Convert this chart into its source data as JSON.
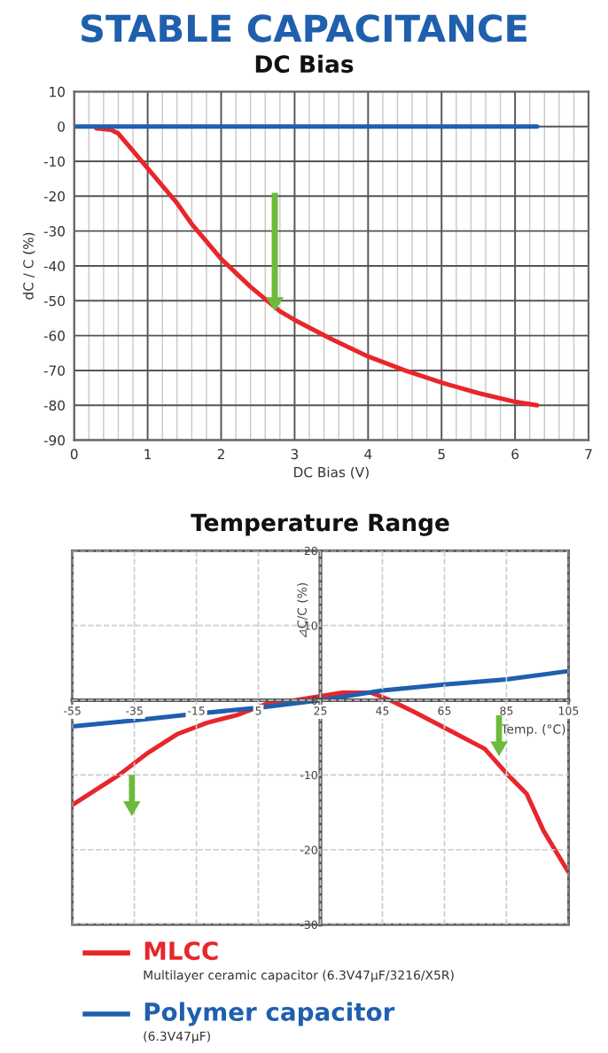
{
  "chart_data": [
    {
      "type": "line",
      "title": "STABLE CAPACITANCE",
      "subtitle": "DC Bias",
      "xlabel": "DC Bias (V)",
      "ylabel": "dC / C (%)",
      "xlim": [
        0,
        7
      ],
      "xticks": [
        0,
        1,
        2,
        3,
        4,
        5,
        6,
        7
      ],
      "ylim": [
        -90,
        10
      ],
      "yticks": [
        -90,
        -80,
        -70,
        -60,
        -50,
        -40,
        -30,
        -20,
        -10,
        0,
        10
      ],
      "grid": true,
      "series": [
        {
          "color": "#e8262b",
          "x": [
            0.3,
            0.5,
            0.6,
            0.8,
            1.0,
            1.2,
            1.4,
            1.6,
            1.8,
            2.0,
            2.2,
            2.4,
            2.6,
            2.8,
            3.0,
            3.5,
            4.0,
            4.5,
            5.0,
            5.5,
            6.0,
            6.3
          ],
          "values": [
            -0.5,
            -1,
            -2,
            -7,
            -12,
            -17,
            -22,
            -28,
            -33,
            -38,
            -42,
            -46,
            -49.5,
            -53,
            -55.5,
            -61,
            -66,
            -70,
            -73.5,
            -76.5,
            -79,
            -80
          ]
        },
        {
          "color": "#1f5fae",
          "x": [
            0,
            6.3
          ],
          "values": [
            0,
            0
          ]
        }
      ]
    },
    {
      "type": "line",
      "title": "Temperature Range",
      "xlabel": "Temp. (°C)",
      "ylabel": "⊿C/C (%)",
      "xlim": [
        -55,
        105
      ],
      "xticks": [
        -55,
        -35,
        -15,
        5,
        25,
        45,
        65,
        85,
        105
      ],
      "ylim": [
        -30,
        20
      ],
      "yticks": [
        -30,
        -20,
        -10,
        0,
        10,
        20
      ],
      "grid": true,
      "legend": "bottom",
      "annotations": [
        "Multilayer ceramic capacitor (6.3V47μF/3216/X5R)",
        "(6.3V47μF)"
      ],
      "series": [
        {
          "name": "MLCC",
          "color": "#e8262b",
          "x": [
            -55,
            -40,
            -30.5,
            -21,
            -11.5,
            -2,
            7.5,
            17,
            24.5,
            32,
            41.5,
            47.5,
            55,
            66.5,
            78,
            85.5,
            91.5,
            97,
            105
          ],
          "values": [
            -14,
            -10,
            -7,
            -4.5,
            -3,
            -2,
            -0.5,
            0,
            0.5,
            1,
            1,
            0,
            -1.5,
            -4,
            -6.5,
            -10,
            -12.5,
            -17.5,
            -23
          ]
        },
        {
          "name": "Polymer capacitor",
          "color": "#1f5fae",
          "x": [
            -55,
            -35,
            -15,
            5,
            25,
            45,
            65,
            85,
            105
          ],
          "values": [
            -3.5,
            -2.7,
            -1.8,
            -1,
            0,
            1.3,
            2.1,
            2.8,
            3.9
          ]
        }
      ]
    }
  ]
}
